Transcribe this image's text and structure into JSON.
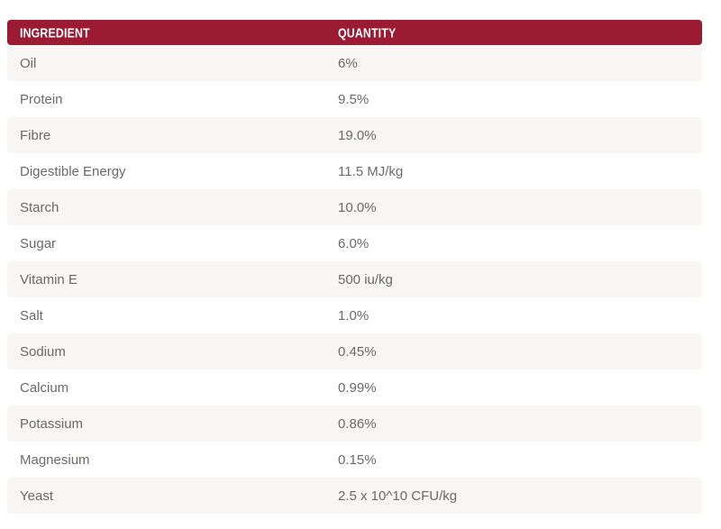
{
  "table": {
    "columns": [
      {
        "label": "INGREDIENT"
      },
      {
        "label": "QUANTITY"
      }
    ],
    "rows": [
      {
        "ingredient": "Oil",
        "quantity": "6%"
      },
      {
        "ingredient": "Protein",
        "quantity": "9.5%"
      },
      {
        "ingredient": "Fibre",
        "quantity": "19.0%"
      },
      {
        "ingredient": "Digestible Energy",
        "quantity": "11.5 MJ/kg"
      },
      {
        "ingredient": "Starch",
        "quantity": "10.0%"
      },
      {
        "ingredient": "Sugar",
        "quantity": "6.0%"
      },
      {
        "ingredient": "Vitamin E",
        "quantity": "500 iu/kg"
      },
      {
        "ingredient": "Salt",
        "quantity": "1.0%"
      },
      {
        "ingredient": "Sodium",
        "quantity": "0.45%"
      },
      {
        "ingredient": "Calcium",
        "quantity": "0.99%"
      },
      {
        "ingredient": "Potassium",
        "quantity": "0.86%"
      },
      {
        "ingredient": "Magnesium",
        "quantity": "0.15%"
      },
      {
        "ingredient": "Yeast",
        "quantity": "2.5 x 10^10 CFU/kg"
      }
    ],
    "colors": {
      "header_bg": "#9B1B32",
      "header_text": "#FFFFFF",
      "stripe_bg": "#F7F6F4",
      "row_text": "#6C6A67"
    }
  }
}
